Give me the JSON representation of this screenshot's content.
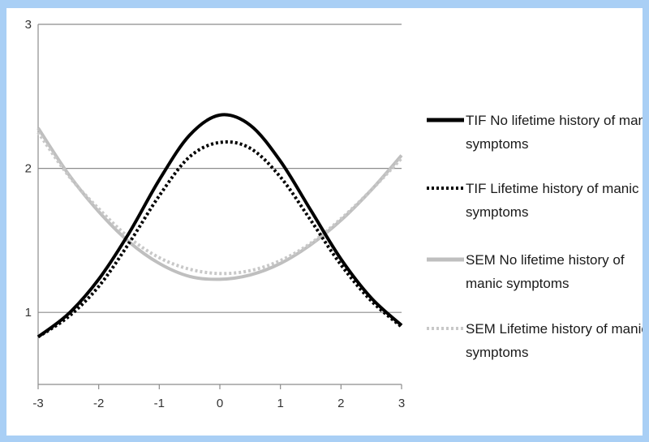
{
  "chart_data": {
    "type": "line",
    "title": "",
    "xlabel": "",
    "ylabel": "",
    "xlim": [
      -3,
      3
    ],
    "ylim": [
      0.5,
      3
    ],
    "x_ticks": [
      "-3",
      "-2",
      "-1",
      "0",
      "1",
      "2",
      "3"
    ],
    "y_ticks": [
      "1",
      "2",
      "3"
    ],
    "grid": "horizontal",
    "legend_position": "right",
    "series": [
      {
        "name": "TIF No lifetime history of manic symptoms",
        "style": "solid",
        "color": "#000000",
        "x": [
          -3,
          -2.5,
          -2,
          -1.5,
          -1,
          -0.5,
          0,
          0.5,
          1,
          1.5,
          2,
          2.5,
          3
        ],
        "y": [
          0.83,
          0.99,
          1.23,
          1.55,
          1.92,
          2.23,
          2.37,
          2.3,
          2.05,
          1.71,
          1.37,
          1.1,
          0.91
        ]
      },
      {
        "name": "TIF Lifetime history of manic symptoms",
        "style": "dotted",
        "color": "#000000",
        "x": [
          -3,
          -2.5,
          -2,
          -1.5,
          -1,
          -0.5,
          0,
          0.5,
          1,
          1.5,
          2,
          2.5,
          3
        ],
        "y": [
          0.83,
          0.97,
          1.18,
          1.48,
          1.81,
          2.08,
          2.18,
          2.14,
          1.94,
          1.64,
          1.33,
          1.08,
          0.9
        ]
      },
      {
        "name": "SEM No lifetime history of manic symptoms",
        "style": "solid",
        "color": "#bfbfbf",
        "x": [
          -3,
          -2.5,
          -2,
          -1.5,
          -1,
          -0.5,
          0,
          0.5,
          1,
          1.5,
          2,
          2.5,
          3
        ],
        "y": [
          2.28,
          1.96,
          1.7,
          1.49,
          1.34,
          1.25,
          1.23,
          1.26,
          1.34,
          1.47,
          1.64,
          1.85,
          2.09
        ]
      },
      {
        "name": "SEM Lifetime history of manic symptoms",
        "style": "dotted",
        "color": "#c8c8c8",
        "x": [
          -3,
          -2.5,
          -2,
          -1.5,
          -1,
          -0.5,
          0,
          0.5,
          1,
          1.5,
          2,
          2.5,
          3
        ],
        "y": [
          2.25,
          1.95,
          1.72,
          1.52,
          1.38,
          1.3,
          1.27,
          1.29,
          1.36,
          1.48,
          1.65,
          1.85,
          2.07
        ]
      }
    ]
  }
}
